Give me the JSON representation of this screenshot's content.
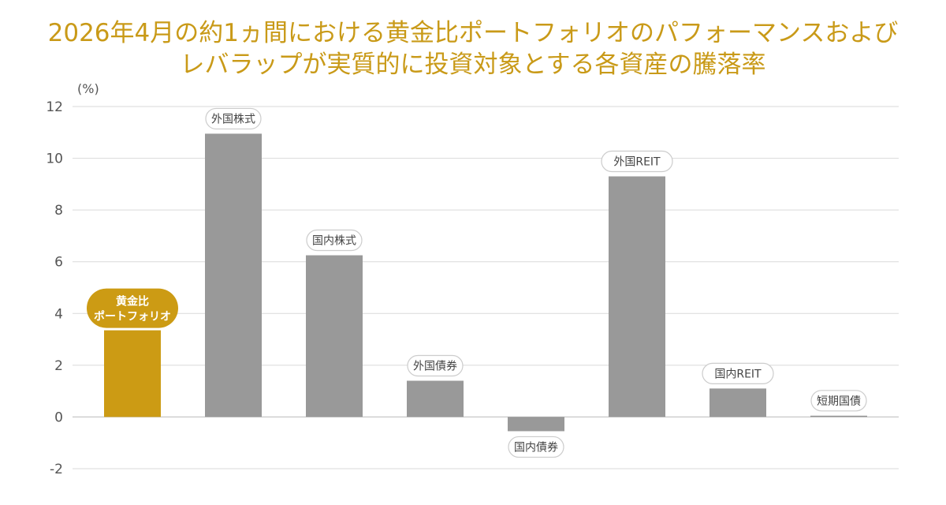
{
  "title": {
    "line1": "2026年4月の約1ヵ間における黄金比ポートフォリオのパフォーマンスおよび",
    "line2": "レバラップが実質的に投資対象とする各資産の騰落率"
  },
  "colors": {
    "title": "#c99a18",
    "highlight_bar": "#cc9b14",
    "bar": "#999999",
    "grid": "#d9d9d9",
    "pill_border": "#cccccc"
  },
  "chart_data": {
    "type": "bar",
    "ylabel": "(%)",
    "ylim": [
      -2,
      12
    ],
    "yticks": [
      12,
      10,
      8,
      6,
      4,
      2,
      0,
      -2
    ],
    "grid": true,
    "legend": "none",
    "categories": [
      [
        "黄金比",
        "ポートフォリオ"
      ],
      [
        "外国株式"
      ],
      [
        "国内株式"
      ],
      [
        "外国債券"
      ],
      [
        "国内債券"
      ],
      [
        "外国REIT"
      ],
      [
        "国内REIT"
      ],
      [
        "短期国債"
      ]
    ],
    "highlight_index": 0,
    "values": [
      3.35,
      10.95,
      6.25,
      1.4,
      -0.55,
      9.3,
      1.1,
      0.05
    ]
  }
}
